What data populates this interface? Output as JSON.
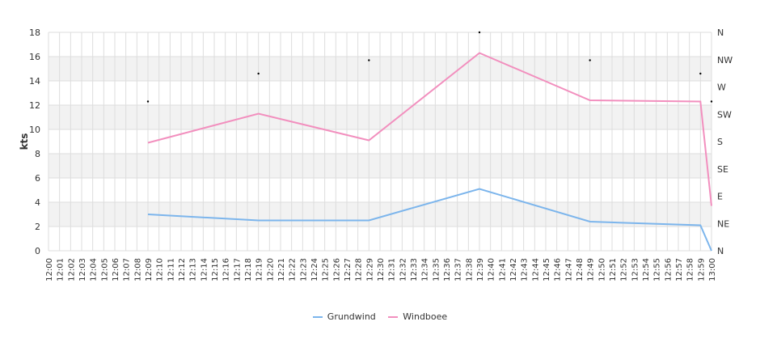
{
  "chart_data": {
    "type": "line",
    "ylabel": "kts",
    "ylim": [
      0,
      18
    ],
    "y_ticks": [
      0,
      2,
      4,
      6,
      8,
      10,
      12,
      14,
      16,
      18
    ],
    "x_start": "12:00",
    "x_end": "13:00",
    "x_ticks": [
      "12:00",
      "12:01",
      "12:02",
      "12:03",
      "12:04",
      "12:05",
      "12:06",
      "12:07",
      "12:08",
      "12:09",
      "12:10",
      "12:11",
      "12:12",
      "12:13",
      "12:14",
      "12:15",
      "12:16",
      "12:17",
      "12:18",
      "12:19",
      "12:20",
      "12:21",
      "12:22",
      "12:23",
      "12:24",
      "12:25",
      "12:26",
      "12:27",
      "12:28",
      "12:29",
      "12:30",
      "12:31",
      "12:32",
      "12:33",
      "12:34",
      "12:35",
      "12:36",
      "12:37",
      "12:38",
      "12:39",
      "12:40",
      "12:41",
      "12:42",
      "12:43",
      "12:44",
      "12:45",
      "12:46",
      "12:47",
      "12:48",
      "12:49",
      "12:50",
      "12:51",
      "12:52",
      "12:53",
      "12:54",
      "12:55",
      "12:56",
      "12:57",
      "12:58",
      "12:59",
      "13:00"
    ],
    "right_axis_labels": [
      "N",
      "NE",
      "E",
      "SE",
      "S",
      "SW",
      "W",
      "NW",
      "N"
    ],
    "series": [
      {
        "name": "Grundwind",
        "color": "#7cb5ec",
        "points": [
          {
            "x": "12:09",
            "y": 3.0
          },
          {
            "x": "12:19",
            "y": 2.5
          },
          {
            "x": "12:29",
            "y": 2.5
          },
          {
            "x": "12:39",
            "y": 5.1
          },
          {
            "x": "12:49",
            "y": 2.4
          },
          {
            "x": "12:59",
            "y": 2.1
          },
          {
            "x": "13:00",
            "y": 0.0
          }
        ]
      },
      {
        "name": "Windboee",
        "color": "#f28fbe",
        "points": [
          {
            "x": "12:09",
            "y": 8.9
          },
          {
            "x": "12:19",
            "y": 11.3
          },
          {
            "x": "12:29",
            "y": 9.1
          },
          {
            "x": "12:39",
            "y": 16.3
          },
          {
            "x": "12:49",
            "y": 12.4
          },
          {
            "x": "12:59",
            "y": 12.3
          },
          {
            "x": "13:00",
            "y": 3.7
          }
        ]
      },
      {
        "name": "",
        "type": "scatter",
        "color": "#000000",
        "points": [
          {
            "x": "12:09",
            "y": 12.3
          },
          {
            "x": "12:19",
            "y": 14.6
          },
          {
            "x": "12:29",
            "y": 15.7
          },
          {
            "x": "12:39",
            "y": 18.0
          },
          {
            "x": "12:49",
            "y": 15.7
          },
          {
            "x": "12:59",
            "y": 14.6
          },
          {
            "x": "13:00",
            "y": 12.3
          }
        ]
      }
    ],
    "legend_position": "bottom-center",
    "grid": true
  },
  "legend": {
    "items": [
      {
        "label": "Grundwind",
        "color": "#7cb5ec"
      },
      {
        "label": "Windboee",
        "color": "#f28fbe"
      }
    ]
  }
}
